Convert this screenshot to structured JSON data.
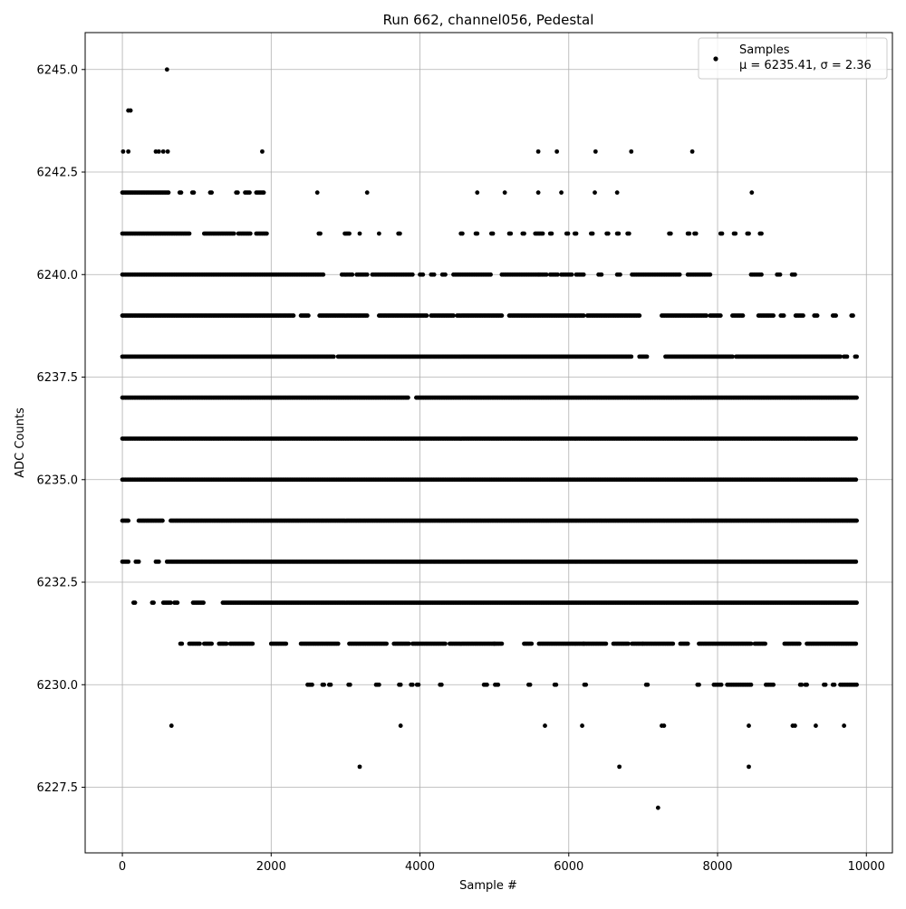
{
  "chart_data": {
    "type": "scatter",
    "title": "Run 662, channel056, Pedestal",
    "xlabel": "Sample #",
    "ylabel": "ADC Counts",
    "xlim": [
      -500,
      10350
    ],
    "ylim": [
      6225.9,
      6245.9
    ],
    "x_ticks": [
      0,
      2000,
      4000,
      6000,
      8000,
      10000
    ],
    "x_tick_labels": [
      "0",
      "2000",
      "4000",
      "6000",
      "8000",
      "10000"
    ],
    "y_ticks": [
      6227.5,
      6230.0,
      6232.5,
      6235.0,
      6237.5,
      6240.0,
      6242.5,
      6245.0
    ],
    "y_tick_labels": [
      "6227.5",
      "6230.0",
      "6232.5",
      "6235.0",
      "6237.5",
      "6240.0",
      "6242.5",
      "6245.0"
    ],
    "grid": true,
    "legend_position": "top-right",
    "legend": {
      "label": "Samples",
      "stats": "μ = 6235.41, σ = 2.36"
    },
    "marker_color": "#000000",
    "series": [
      {
        "name": "Samples",
        "outliers": [
          [
            600,
            6245
          ],
          [
            80,
            6244
          ],
          [
            110,
            6244
          ],
          [
            10,
            6243
          ],
          [
            80,
            6243
          ],
          [
            450,
            6243
          ],
          [
            490,
            6243
          ],
          [
            550,
            6243
          ],
          [
            610,
            6243
          ],
          [
            1880,
            6243
          ],
          [
            5590,
            6243
          ],
          [
            5840,
            6243
          ],
          [
            6360,
            6243
          ],
          [
            6840,
            6243
          ],
          [
            7660,
            6243
          ],
          [
            2620,
            6242
          ],
          [
            3290,
            6242
          ],
          [
            4770,
            6242
          ],
          [
            5140,
            6242
          ],
          [
            5590,
            6242
          ],
          [
            5900,
            6242
          ],
          [
            6350,
            6242
          ],
          [
            6650,
            6242
          ],
          [
            8460,
            6242
          ],
          [
            660,
            6229
          ],
          [
            3740,
            6229
          ],
          [
            5680,
            6229
          ],
          [
            6180,
            6229
          ],
          [
            7250,
            6229
          ],
          [
            7280,
            6229
          ],
          [
            8420,
            6229
          ],
          [
            9010,
            6229
          ],
          [
            9040,
            6229
          ],
          [
            9320,
            6229
          ],
          [
            9700,
            6229
          ],
          [
            3190,
            6228
          ],
          [
            6680,
            6228
          ],
          [
            8420,
            6228
          ],
          [
            7200,
            6227
          ]
        ],
        "level_ranges": [
          {
            "y": 6242,
            "ranges": [
              [
                0,
                620
              ],
              [
                770,
                790
              ],
              [
                940,
                960
              ],
              [
                1180,
                1200
              ],
              [
                1530,
                1550
              ],
              [
                1650,
                1720
              ],
              [
                1800,
                1900
              ]
            ]
          },
          {
            "y": 6241,
            "ranges": [
              [
                0,
                900
              ],
              [
                1100,
                1500
              ],
              [
                1560,
                1720
              ],
              [
                1800,
                1950
              ],
              [
                2640,
                2660
              ],
              [
                2990,
                3060
              ],
              [
                3190,
                3200
              ],
              [
                3450,
                3460
              ],
              [
                3710,
                3730
              ],
              [
                4550,
                4570
              ],
              [
                4750,
                4770
              ],
              [
                4960,
                4980
              ],
              [
                5200,
                5220
              ],
              [
                5380,
                5400
              ],
              [
                5550,
                5650
              ],
              [
                5750,
                5780
              ],
              [
                5970,
                6000
              ],
              [
                6080,
                6100
              ],
              [
                6300,
                6330
              ],
              [
                6510,
                6530
              ],
              [
                6650,
                6670
              ],
              [
                6790,
                6810
              ],
              [
                7350,
                7370
              ],
              [
                7600,
                7630
              ],
              [
                7690,
                7720
              ],
              [
                8040,
                8060
              ],
              [
                8220,
                8240
              ],
              [
                8400,
                8420
              ],
              [
                8570,
                8590
              ]
            ]
          },
          {
            "y": 6240,
            "ranges": [
              [
                0,
                2700
              ],
              [
                2950,
                3100
              ],
              [
                3150,
                3300
              ],
              [
                3360,
                3900
              ],
              [
                4000,
                4050
              ],
              [
                4150,
                4200
              ],
              [
                4300,
                4350
              ],
              [
                4450,
                4950
              ],
              [
                5100,
                5600
              ],
              [
                5600,
                5700
              ],
              [
                5750,
                5850
              ],
              [
                5900,
                6050
              ],
              [
                6100,
                6200
              ],
              [
                6400,
                6450
              ],
              [
                6650,
                6700
              ],
              [
                6850,
                7500
              ],
              [
                7600,
                7900
              ],
              [
                8450,
                8600
              ],
              [
                8800,
                8850
              ],
              [
                9000,
                9050
              ]
            ]
          },
          {
            "y": 6239,
            "ranges": [
              [
                0,
                2300
              ],
              [
                2400,
                2500
              ],
              [
                2650,
                3300
              ],
              [
                3450,
                4100
              ],
              [
                4150,
                4450
              ],
              [
                4500,
                5100
              ],
              [
                5200,
                6200
              ],
              [
                6250,
                6950
              ],
              [
                7250,
                7850
              ],
              [
                7900,
                8050
              ],
              [
                8200,
                8350
              ],
              [
                8550,
                8750
              ],
              [
                8850,
                8900
              ],
              [
                9050,
                9150
              ],
              [
                9300,
                9350
              ],
              [
                9550,
                9600
              ],
              [
                9800,
                9820
              ]
            ]
          },
          {
            "y": 6238,
            "ranges": [
              [
                0,
                2850
              ],
              [
                2900,
                6850
              ],
              [
                6950,
                7050
              ],
              [
                7300,
                8200
              ],
              [
                8250,
                9650
              ],
              [
                9700,
                9750
              ],
              [
                9850,
                9870
              ]
            ]
          },
          {
            "y": 6237,
            "ranges": [
              [
                0,
                3850
              ],
              [
                3950,
                9870
              ]
            ]
          },
          {
            "y": 6236,
            "ranges": [
              [
                0,
                9870
              ]
            ]
          },
          {
            "y": 6235,
            "ranges": [
              [
                0,
                9870
              ]
            ]
          },
          {
            "y": 6234,
            "ranges": [
              [
                0,
                80
              ],
              [
                220,
                480
              ],
              [
                500,
                540
              ],
              [
                650,
                9870
              ]
            ]
          },
          {
            "y": 6233,
            "ranges": [
              [
                0,
                80
              ],
              [
                180,
                230
              ],
              [
                450,
                500
              ],
              [
                600,
                9870
              ]
            ]
          },
          {
            "y": 6232,
            "ranges": [
              [
                150,
                170
              ],
              [
                400,
                420
              ],
              [
                550,
                650
              ],
              [
                700,
                750
              ],
              [
                950,
                1100
              ],
              [
                1350,
                9870
              ]
            ]
          },
          {
            "y": 6231,
            "ranges": [
              [
                780,
                800
              ],
              [
                900,
                1050
              ],
              [
                1100,
                1200
              ],
              [
                1300,
                1400
              ],
              [
                1450,
                1750
              ],
              [
                2000,
                2200
              ],
              [
                2400,
                2900
              ],
              [
                3050,
                3550
              ],
              [
                3650,
                3850
              ],
              [
                3900,
                4350
              ],
              [
                4400,
                5000
              ],
              [
                5000,
                5100
              ],
              [
                5400,
                5500
              ],
              [
                5600,
                6200
              ],
              [
                6200,
                6500
              ],
              [
                6600,
                6800
              ],
              [
                6850,
                7000
              ],
              [
                7000,
                7400
              ],
              [
                7500,
                7600
              ],
              [
                7750,
                8450
              ],
              [
                8500,
                8650
              ],
              [
                8900,
                9100
              ],
              [
                9200,
                9870
              ]
            ]
          },
          {
            "y": 6230,
            "ranges": [
              [
                2490,
                2550
              ],
              [
                2690,
                2710
              ],
              [
                2780,
                2800
              ],
              [
                3040,
                3060
              ],
              [
                3410,
                3450
              ],
              [
                3720,
                3740
              ],
              [
                3880,
                3900
              ],
              [
                3960,
                3980
              ],
              [
                4270,
                4290
              ],
              [
                4860,
                4900
              ],
              [
                5010,
                5050
              ],
              [
                5460,
                5480
              ],
              [
                5810,
                5830
              ],
              [
                6210,
                6240
              ],
              [
                7040,
                7060
              ],
              [
                7730,
                7750
              ],
              [
                7950,
                8050
              ],
              [
                8130,
                8450
              ],
              [
                8650,
                8750
              ],
              [
                9110,
                9130
              ],
              [
                9180,
                9200
              ],
              [
                9430,
                9450
              ],
              [
                9550,
                9570
              ],
              [
                9650,
                9870
              ]
            ]
          }
        ]
      }
    ]
  }
}
